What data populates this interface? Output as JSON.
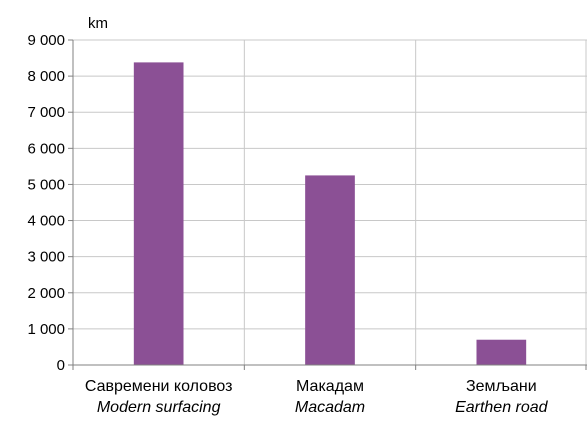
{
  "chart_data": {
    "type": "bar",
    "ylabel": "km",
    "ylim": [
      0,
      9000
    ],
    "yticks": [
      "0",
      "1 000",
      "2 000",
      "3 000",
      "4 000",
      "5 000",
      "6 000",
      "7 000",
      "8 000",
      "9 000"
    ],
    "categories": [
      {
        "main": "Савремени коловоз",
        "sub": "Modern surfacing"
      },
      {
        "main": "Макадам",
        "sub": "Macadam"
      },
      {
        "main": "Земљани",
        "sub": "Earthen road"
      }
    ],
    "values": [
      8380,
      5250,
      700
    ],
    "bar_color": "#8B5095",
    "grid": true
  }
}
